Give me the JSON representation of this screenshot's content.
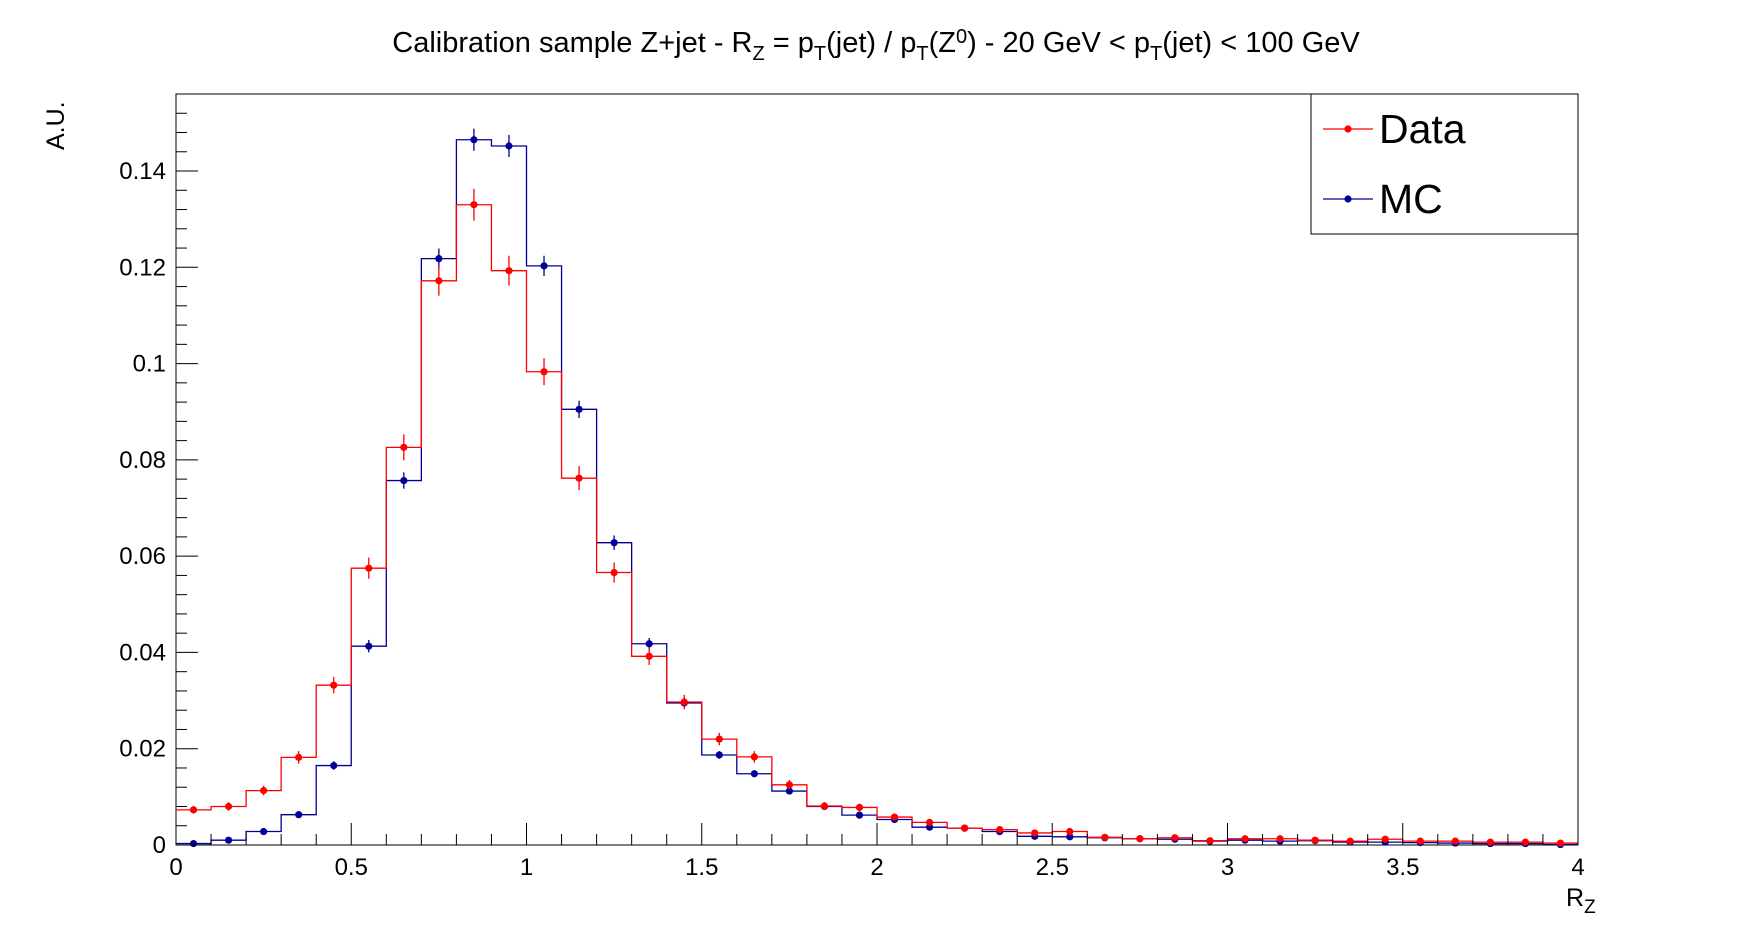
{
  "chart_data": {
    "type": "histogram",
    "title": {
      "parts": [
        {
          "t": "Calibration sample Z+jet - R",
          "s": "n"
        },
        {
          "t": "Z",
          "s": "sub"
        },
        {
          "t": " = p",
          "s": "n"
        },
        {
          "t": "T",
          "s": "sub"
        },
        {
          "t": "(jet) / p",
          "s": "n"
        },
        {
          "t": "T",
          "s": "sub"
        },
        {
          "t": "(Z",
          "s": "n"
        },
        {
          "t": "0",
          "s": "sup"
        },
        {
          "t": ") - 20 GeV < p",
          "s": "n"
        },
        {
          "t": "T",
          "s": "sub"
        },
        {
          "t": "(jet) < 100 GeV",
          "s": "n"
        }
      ]
    },
    "xlabel": {
      "main": "R",
      "sub": "Z"
    },
    "ylabel": "A.U.",
    "xlim": [
      0,
      4
    ],
    "ylim": [
      0,
      0.156
    ],
    "x_ticks": [
      "0",
      "0.5",
      "1",
      "1.5",
      "2",
      "2.5",
      "3",
      "3.5",
      "4"
    ],
    "y_ticks": [
      "0",
      "0.02",
      "0.04",
      "0.06",
      "0.08",
      "0.1",
      "0.12",
      "0.14"
    ],
    "bin_width": 0.1,
    "bin_centers": [
      0.05,
      0.15,
      0.25,
      0.35,
      0.45,
      0.55,
      0.65,
      0.75,
      0.85,
      0.95,
      1.05,
      1.15,
      1.25,
      1.35,
      1.45,
      1.55,
      1.65,
      1.75,
      1.85,
      1.95,
      2.05,
      2.15,
      2.25,
      2.35,
      2.45,
      2.55,
      2.65,
      2.75,
      2.85,
      2.95,
      3.05,
      3.15,
      3.25,
      3.35,
      3.45,
      3.55,
      3.65,
      3.75,
      3.85,
      3.95
    ],
    "series": [
      {
        "name": "MC",
        "color": "#000099",
        "values": [
          0.0003,
          0.001,
          0.0028,
          0.0063,
          0.0165,
          0.0413,
          0.0757,
          0.1218,
          0.1465,
          0.1452,
          0.1203,
          0.0905,
          0.0628,
          0.0418,
          0.0295,
          0.0187,
          0.0148,
          0.0112,
          0.008,
          0.0062,
          0.0053,
          0.0037,
          0.0035,
          0.0028,
          0.0018,
          0.0017,
          0.0015,
          0.0013,
          0.0012,
          0.0008,
          0.001,
          0.0008,
          0.0009,
          0.0006,
          0.0006,
          0.0005,
          0.0004,
          0.0003,
          0.0003,
          0.0001
        ],
        "errors": [
          0.0002,
          0.0004,
          0.0005,
          0.0007,
          0.0009,
          0.0013,
          0.0017,
          0.0021,
          0.0023,
          0.0023,
          0.0021,
          0.0018,
          0.0015,
          0.0012,
          0.001,
          0.0008,
          0.0007,
          0.0006,
          0.0005,
          0.0004,
          0.0004,
          0.0003,
          0.0003,
          0.0003,
          0.0002,
          0.0002,
          0.0002,
          0.0002,
          0.0002,
          0.0002,
          0.0002,
          0.0002,
          0.0002,
          0.0001,
          0.0001,
          0.0001,
          0.0001,
          0.0001,
          0.0001,
          0.0001
        ]
      },
      {
        "name": "Data",
        "color": "#ff0000",
        "values": [
          0.0073,
          0.008,
          0.0113,
          0.0182,
          0.0332,
          0.0575,
          0.0826,
          0.1172,
          0.133,
          0.1193,
          0.0983,
          0.0762,
          0.0566,
          0.0392,
          0.0297,
          0.022,
          0.0183,
          0.0125,
          0.0081,
          0.0078,
          0.0058,
          0.0047,
          0.0035,
          0.0032,
          0.0025,
          0.0028,
          0.0016,
          0.0013,
          0.0015,
          0.0009,
          0.0013,
          0.0013,
          0.001,
          0.0008,
          0.0012,
          0.0008,
          0.0008,
          0.0006,
          0.0006,
          0.0004
        ],
        "errors": [
          0.0008,
          0.0009,
          0.001,
          0.0013,
          0.0017,
          0.0022,
          0.0027,
          0.0031,
          0.0033,
          0.0031,
          0.0028,
          0.0025,
          0.0021,
          0.0018,
          0.0015,
          0.0013,
          0.0012,
          0.001,
          0.0008,
          0.0008,
          0.0007,
          0.0006,
          0.0005,
          0.0005,
          0.0005,
          0.0005,
          0.0004,
          0.0003,
          0.0004,
          0.0003,
          0.0003,
          0.0003,
          0.0003,
          0.0003,
          0.0003,
          0.0003,
          0.0003,
          0.0002,
          0.0002,
          0.0002
        ]
      }
    ],
    "legend": {
      "position": "top-right",
      "entries": [
        {
          "label": "Data",
          "color": "#ff0000"
        },
        {
          "label": "MC",
          "color": "#000099"
        }
      ]
    }
  }
}
